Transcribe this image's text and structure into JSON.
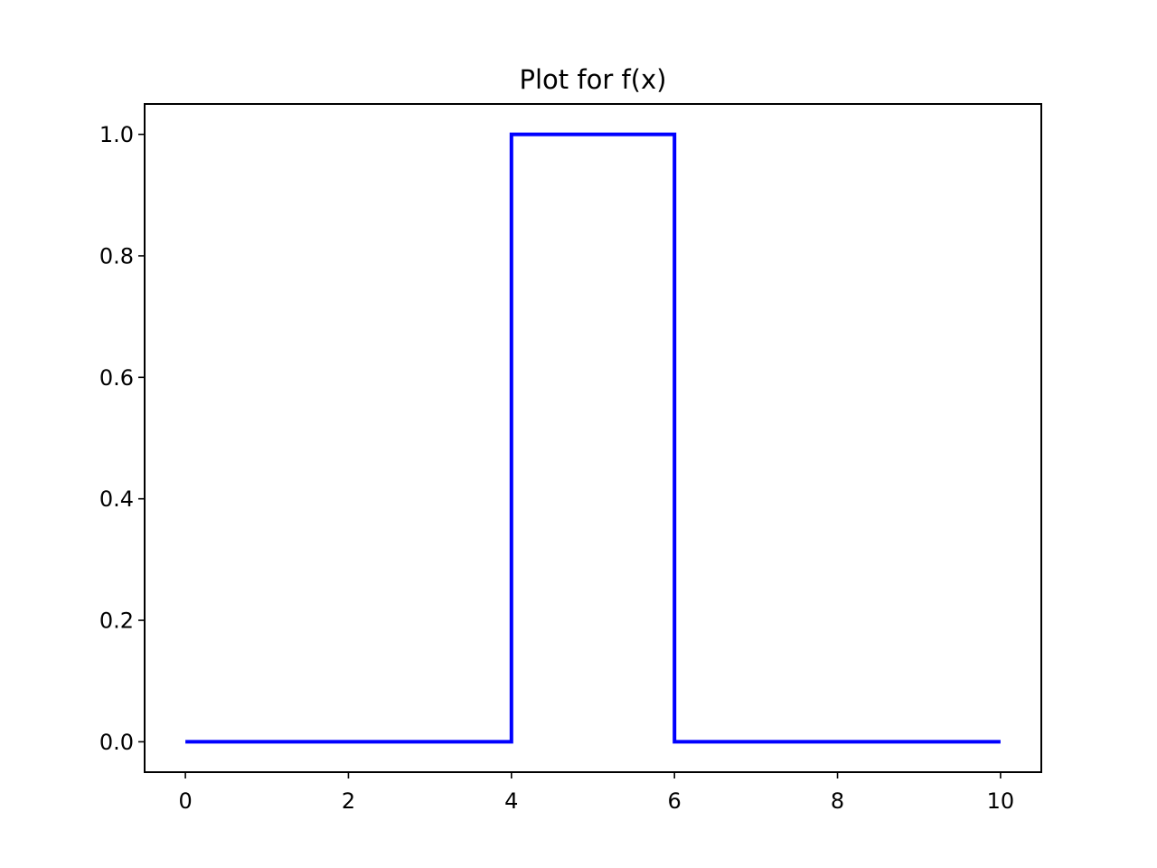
{
  "chart_data": {
    "type": "line",
    "title": "Plot for f(x)",
    "xlabel": "",
    "ylabel": "",
    "xlim": [
      -0.5,
      10.5
    ],
    "ylim": [
      -0.05,
      1.05
    ],
    "xticks": [
      0,
      2,
      4,
      6,
      8,
      10
    ],
    "xtick_labels": [
      "0",
      "2",
      "4",
      "6",
      "8",
      "10"
    ],
    "yticks": [
      0.0,
      0.2,
      0.4,
      0.6,
      0.8,
      1.0
    ],
    "ytick_labels": [
      "0.0",
      "0.2",
      "0.4",
      "0.6",
      "0.8",
      "1.0"
    ],
    "grid": false,
    "series": [
      {
        "color": "#0000ff",
        "points": [
          [
            0,
            0
          ],
          [
            4,
            0
          ],
          [
            4,
            1
          ],
          [
            6,
            1
          ],
          [
            6,
            0
          ],
          [
            10,
            0
          ]
        ]
      }
    ]
  }
}
